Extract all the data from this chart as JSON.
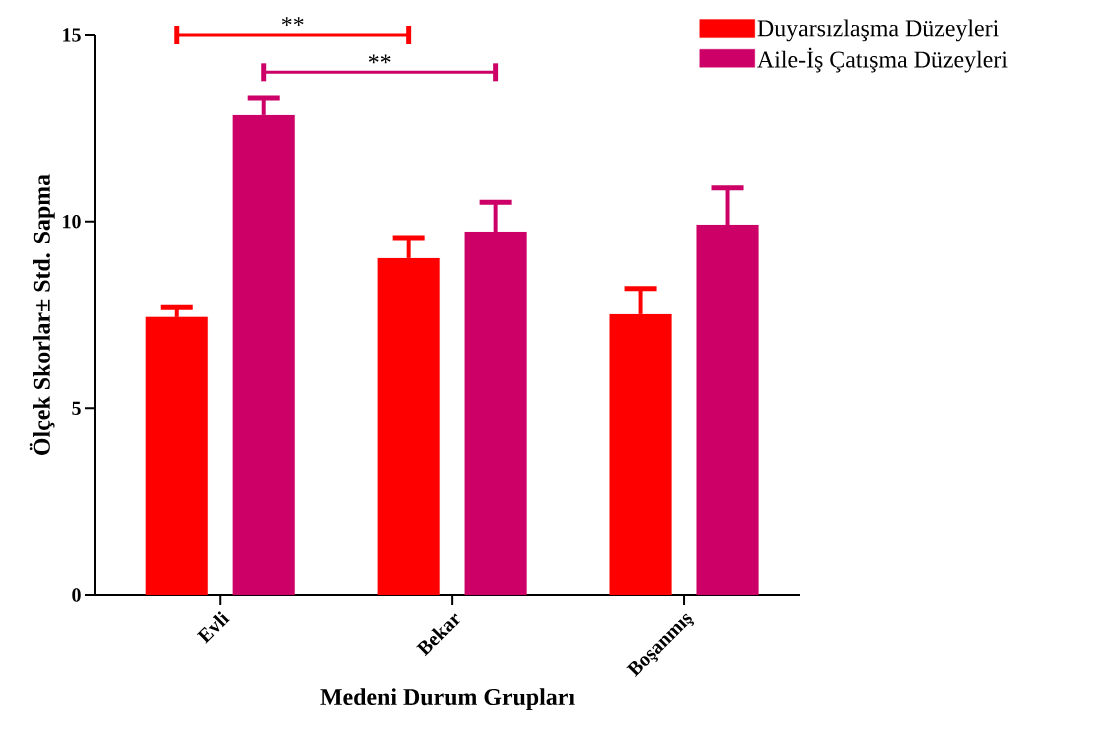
{
  "chart_data": {
    "type": "bar",
    "xlabel": "Medeni Durum Grupları",
    "ylabel": "Ölçek Skorlar± Std. Sapma",
    "categories": [
      "Evli",
      "Bekar",
      "Boşanmış"
    ],
    "series": [
      {
        "name": "Duyarsızlaşma Düzeyleri",
        "color": "#ff0000",
        "values": [
          7.45,
          9.03,
          7.53
        ],
        "errors": [
          0.26,
          0.53,
          0.67
        ]
      },
      {
        "name": "Aile-İş Çatışma Düzeyleri",
        "color": "#cc0066",
        "values": [
          12.86,
          9.72,
          9.91
        ],
        "errors": [
          0.45,
          0.8,
          1.0
        ]
      }
    ],
    "ylim": [
      0,
      15
    ],
    "yticks": [
      0,
      5,
      10,
      15
    ],
    "legend": "top right",
    "grid": false,
    "annotations": [
      "**",
      "**"
    ]
  }
}
